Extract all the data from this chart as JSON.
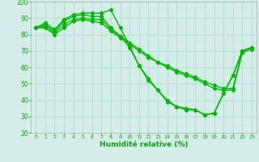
{
  "series": [
    {
      "x": [
        0,
        1,
        2,
        3,
        4,
        5,
        6,
        7,
        8,
        9,
        10,
        11,
        12,
        13,
        14,
        15,
        16,
        17,
        18,
        19,
        20,
        21,
        22,
        23
      ],
      "y": [
        84,
        87,
        83,
        89,
        92,
        93,
        93,
        93,
        95,
        84,
        73,
        61,
        53,
        46,
        39,
        36,
        34,
        34,
        31,
        32,
        44,
        55,
        70,
        72
      ]
    },
    {
      "x": [
        0,
        1,
        2,
        3,
        4,
        5,
        6,
        7,
        8,
        9,
        10,
        11,
        12,
        13,
        14,
        15,
        16,
        17,
        18,
        19,
        20,
        21,
        22,
        23
      ],
      "y": [
        84,
        86,
        82,
        88,
        91,
        92,
        91,
        91,
        84,
        79,
        72,
        61,
        52,
        46,
        40,
        36,
        35,
        34,
        31,
        32,
        44,
        55,
        70,
        72
      ]
    },
    {
      "x": [
        0,
        1,
        2,
        3,
        4,
        5,
        6,
        7,
        8,
        9,
        10,
        11,
        12,
        13,
        14,
        15,
        16,
        17,
        18,
        19,
        20,
        21,
        22,
        23
      ],
      "y": [
        84,
        85,
        81,
        86,
        89,
        90,
        89,
        89,
        83,
        79,
        75,
        71,
        67,
        63,
        61,
        58,
        56,
        54,
        51,
        49,
        47,
        47,
        70,
        72
      ]
    },
    {
      "x": [
        0,
        1,
        2,
        3,
        4,
        5,
        6,
        7,
        8,
        9,
        10,
        11,
        12,
        13,
        14,
        15,
        16,
        17,
        18,
        19,
        20,
        21,
        22,
        23
      ],
      "y": [
        84,
        84,
        80,
        84,
        88,
        89,
        88,
        87,
        82,
        78,
        74,
        70,
        66,
        63,
        60,
        57,
        55,
        53,
        50,
        47,
        46,
        46,
        69,
        71
      ]
    }
  ],
  "line_color": "#00bb00",
  "marker": "D",
  "markersize": 2.2,
  "linewidth": 1.0,
  "xlabel": "Humidité relative (%)",
  "xlim": [
    -0.5,
    23.5
  ],
  "ylim": [
    20,
    100
  ],
  "yticks": [
    20,
    30,
    40,
    50,
    60,
    70,
    80,
    90,
    100
  ],
  "xticks": [
    0,
    1,
    2,
    3,
    4,
    5,
    6,
    7,
    8,
    9,
    10,
    11,
    12,
    13,
    14,
    15,
    16,
    17,
    18,
    19,
    20,
    21,
    22,
    23
  ],
  "grid_color": "#aaddcc",
  "bg_color": "#d5ede8",
  "tick_color": "#00aa00",
  "label_color": "#00aa00"
}
